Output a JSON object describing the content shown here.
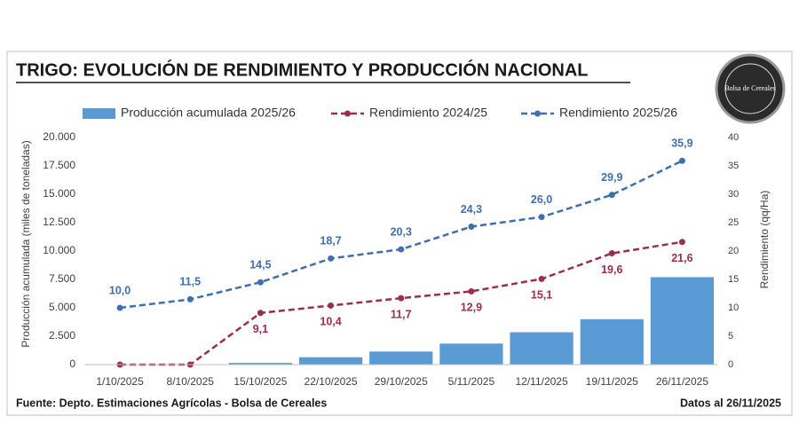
{
  "chart_data": {
    "type": "combo",
    "title": "TRIGO: EVOLUCIÓN DE RENDIMIENTO Y PRODUCCIÓN NACIONAL",
    "logo_text": "Bolsa de Cereales",
    "source": "Fuente: Depto. Estimaciones Agrícolas - Bolsa de Cereales",
    "date_note": "Datos al 26/11/2025",
    "ylabel": "Producción acumulada (miles de toneladas)",
    "y2label": "Rendimiento (qq/Ha)",
    "categories": [
      "1/10/2025",
      "8/10/2025",
      "15/10/2025",
      "22/10/2025",
      "29/10/2025",
      "5/11/2025",
      "12/11/2025",
      "19/11/2025",
      "26/11/2025"
    ],
    "series": [
      {
        "name": "Producción acumulada 2025/26",
        "type": "bar",
        "color": "#5b9bd5",
        "values": [
          0,
          0,
          150,
          650,
          1150,
          1850,
          2850,
          4000,
          7700
        ]
      },
      {
        "name": "Rendimiento 2024/25",
        "type": "line",
        "axis": "y2",
        "color": "#9b2d4f",
        "values": [
          0,
          0,
          9.1,
          10.4,
          11.7,
          12.9,
          15.1,
          19.6,
          21.6
        ],
        "value_labels": [
          null,
          null,
          "9,1",
          "10,4",
          "11,7",
          "12,9",
          "15,1",
          "19,6",
          "21,6"
        ],
        "label_position": "below"
      },
      {
        "name": "Rendimiento 2025/26",
        "type": "line",
        "axis": "y2",
        "color": "#3f6fae",
        "values": [
          10.0,
          11.5,
          14.5,
          18.7,
          20.3,
          24.3,
          26.0,
          29.9,
          35.9
        ],
        "value_labels": [
          "10,0",
          "11,5",
          "14,5",
          "18,7",
          "20,3",
          "24,3",
          "26,0",
          "29,9",
          "35,9"
        ],
        "label_position": "above"
      }
    ],
    "ylim": [
      0,
      20000
    ],
    "yticks": [
      0,
      {
        "value": 2500,
        "label": "2.500"
      },
      {
        "value": 5000,
        "label": "5.000"
      },
      {
        "value": 7500,
        "label": "7.500"
      },
      {
        "value": 10000,
        "label": "10.000"
      },
      {
        "value": 12500,
        "label": "12.500"
      },
      {
        "value": 15000,
        "label": "15.000"
      },
      {
        "value": 17500,
        "label": "17.500"
      },
      {
        "value": 20000,
        "label": "20.000"
      }
    ],
    "y2lim": [
      0,
      40
    ],
    "y2ticks": [
      0,
      5,
      10,
      15,
      20,
      25,
      30,
      35,
      40
    ]
  }
}
